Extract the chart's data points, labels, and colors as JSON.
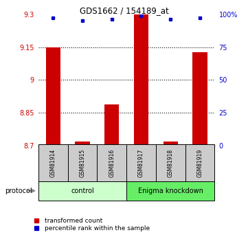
{
  "title": "GDS1662 / 154189_at",
  "samples": [
    "GSM81914",
    "GSM81915",
    "GSM81916",
    "GSM81917",
    "GSM81918",
    "GSM81919"
  ],
  "red_values": [
    9.148,
    8.718,
    8.888,
    9.298,
    8.718,
    9.128
  ],
  "blue_values": [
    97,
    95,
    96,
    99,
    96,
    97
  ],
  "ylim_left": [
    8.7,
    9.3
  ],
  "ylim_right": [
    0,
    100
  ],
  "yticks_left": [
    8.7,
    8.85,
    9.0,
    9.15,
    9.3
  ],
  "yticks_right": [
    0,
    25,
    50,
    75,
    100
  ],
  "ytick_labels_left": [
    "8.7",
    "8.85",
    "9",
    "9.15",
    "9.3"
  ],
  "ytick_labels_right": [
    "0",
    "25",
    "50",
    "75",
    "100%"
  ],
  "hlines": [
    9.15,
    9.0,
    8.85
  ],
  "bar_width": 0.5,
  "bar_color": "#cc0000",
  "dot_color": "#0000cc",
  "control_samples": [
    0,
    1,
    2
  ],
  "knockdown_samples": [
    3,
    4,
    5
  ],
  "control_label": "control",
  "knockdown_label": "Enigma knockdown",
  "protocol_label": "protocol",
  "legend_red": "transformed count",
  "legend_blue": "percentile rank within the sample",
  "control_color": "#ccffcc",
  "knockdown_color": "#66ee66",
  "sample_box_color": "#cccccc",
  "bg_color": "#ffffff"
}
